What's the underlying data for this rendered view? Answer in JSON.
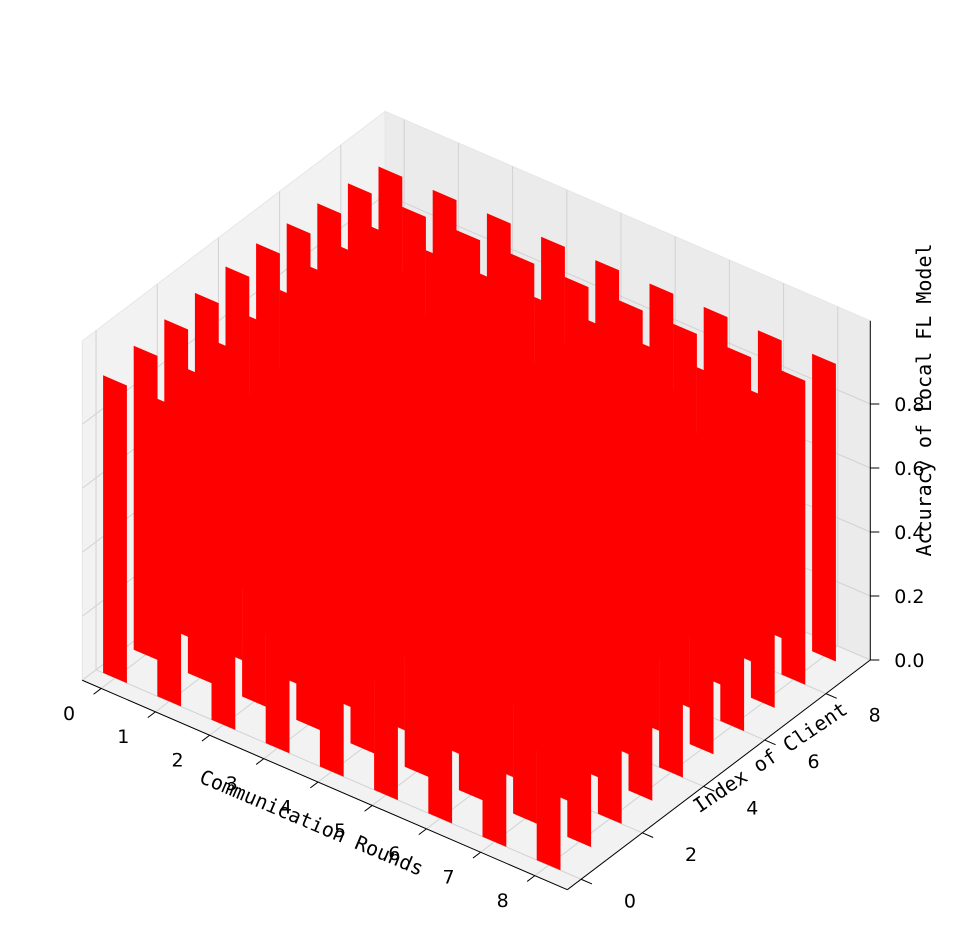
{
  "chart_data": {
    "type": "bar3d",
    "title": "",
    "xlabel": "Communication Rounds",
    "ylabel": "Index of Client",
    "zlabel": "Accuracy of Local FL Model",
    "x_ticks": [
      "0",
      "1",
      "2",
      "3",
      "4",
      "5",
      "6",
      "7",
      "8"
    ],
    "y_ticks": [
      "0",
      "2",
      "4",
      "6",
      "8"
    ],
    "z_ticks": [
      "0.0",
      "0.2",
      "0.4",
      "0.6",
      "0.8"
    ],
    "x_range": [
      0,
      8
    ],
    "y_range": [
      0,
      9
    ],
    "z_range": [
      0,
      1.0
    ],
    "grid": true,
    "bar_color": "#ff0000",
    "rounds": [
      0,
      1,
      2,
      3,
      4,
      5,
      6,
      7,
      8
    ],
    "clients": [
      0,
      1,
      2,
      3,
      4,
      5,
      6,
      7,
      8,
      9
    ],
    "values": [
      [
        0.93,
        0.95,
        0.96,
        0.97,
        0.98,
        0.98,
        0.97,
        0.96,
        0.95,
        0.93
      ],
      [
        0.93,
        0.95,
        0.96,
        0.97,
        0.98,
        0.98,
        0.97,
        0.96,
        0.95,
        0.93
      ],
      [
        0.93,
        0.95,
        0.96,
        0.97,
        0.98,
        0.98,
        0.97,
        0.96,
        0.95,
        0.93
      ],
      [
        0.93,
        0.95,
        0.96,
        0.97,
        0.98,
        0.98,
        0.97,
        0.96,
        0.95,
        0.93
      ],
      [
        0.93,
        0.95,
        0.96,
        0.97,
        0.98,
        0.98,
        0.97,
        0.96,
        0.95,
        0.93
      ],
      [
        0.93,
        0.95,
        0.96,
        0.97,
        0.98,
        0.98,
        0.97,
        0.96,
        0.95,
        0.93
      ],
      [
        0.93,
        0.95,
        0.96,
        0.97,
        0.98,
        0.98,
        0.97,
        0.96,
        0.95,
        0.93
      ],
      [
        0.93,
        0.95,
        0.96,
        0.97,
        0.98,
        0.98,
        0.97,
        0.96,
        0.95,
        0.93
      ],
      [
        0.93,
        0.95,
        0.96,
        0.97,
        0.98,
        0.98,
        0.97,
        0.96,
        0.95,
        0.93
      ]
    ]
  }
}
